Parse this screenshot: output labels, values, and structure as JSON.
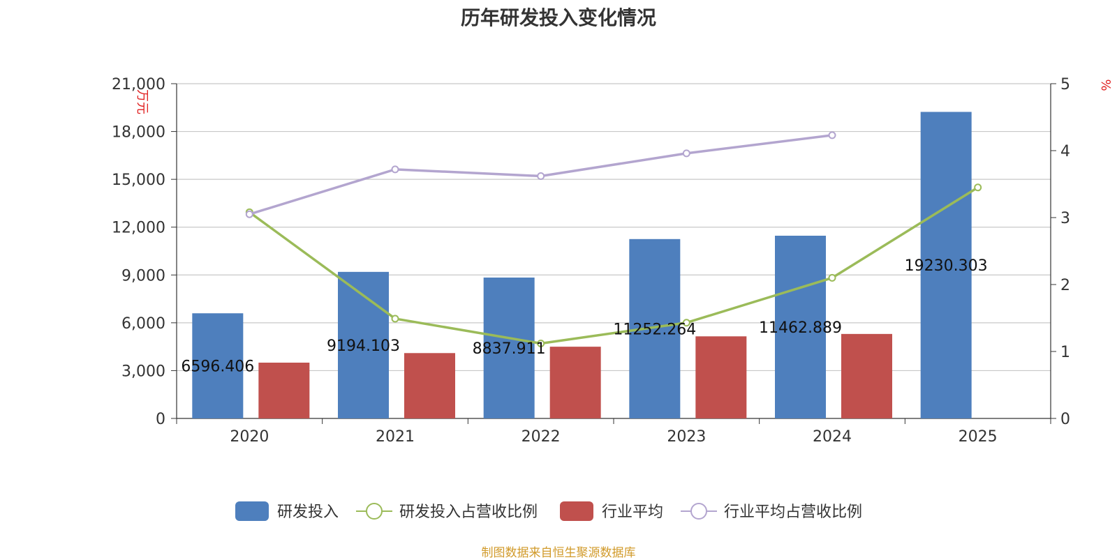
{
  "chart_data": {
    "type": "bar",
    "title": "历年研发投入变化情况",
    "categories": [
      "2020",
      "2021",
      "2022",
      "2023",
      "2024",
      "2025"
    ],
    "series": [
      {
        "name": "研发投入",
        "kind": "bar",
        "axis": "left",
        "color": "#4e7fbd",
        "values": [
          6596.406,
          9194.103,
          8837.911,
          11252.264,
          11462.889,
          19230.303
        ],
        "labels": [
          "6596.406",
          "9194.103",
          "8837.911",
          "11252.264",
          "11462.889",
          "19230.303"
        ]
      },
      {
        "name": "研发投入占营收比例",
        "kind": "line",
        "axis": "right",
        "color": "#9bbb59",
        "values": [
          3.08,
          1.49,
          1.12,
          1.43,
          2.1,
          3.45
        ]
      },
      {
        "name": "行业平均",
        "kind": "bar",
        "axis": "left",
        "color": "#c0504d",
        "values": [
          3500,
          4100,
          4500,
          5150,
          5300,
          null
        ]
      },
      {
        "name": "行业平均占营收比例",
        "kind": "line",
        "axis": "right",
        "color": "#b3a5cf",
        "values": [
          3.05,
          3.72,
          3.62,
          3.96,
          4.23,
          null
        ]
      }
    ],
    "y_left": {
      "label": "万元",
      "min": 0,
      "max": 21000,
      "ticks": [
        "0",
        "3,000",
        "6,000",
        "9,000",
        "12,000",
        "15,000",
        "18,000",
        "21,000"
      ]
    },
    "y_right": {
      "label": "%",
      "min": 0,
      "max": 5,
      "ticks": [
        "0",
        "1",
        "2",
        "3",
        "4",
        "5"
      ]
    },
    "grid": true,
    "legend_position": "bottom"
  },
  "source": "制图数据来自恒生聚源数据库"
}
